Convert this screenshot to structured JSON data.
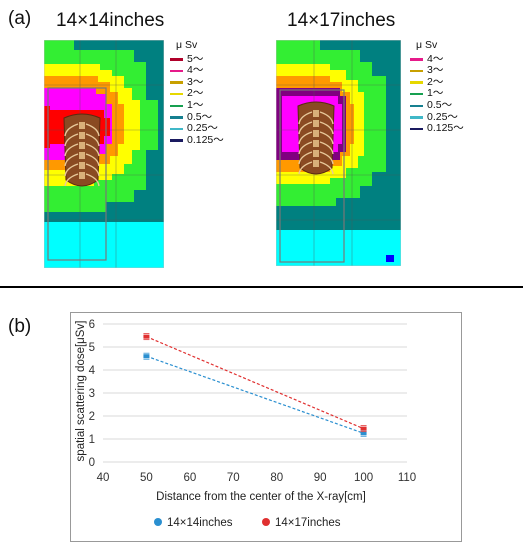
{
  "panel_a": {
    "label": "(a)",
    "maps": [
      {
        "title": "14×14inches",
        "legend_unit": "μ Sv",
        "legend": [
          {
            "label": "5～",
            "color": "#b0002a"
          },
          {
            "label": "4～",
            "color": "#e61a8a"
          },
          {
            "label": "3～",
            "color": "#c8a000"
          },
          {
            "label": "2～",
            "color": "#e6d800"
          },
          {
            "label": "1～",
            "color": "#16a050"
          },
          {
            "label": "0.5～",
            "color": "#168090"
          },
          {
            "label": "0.25～",
            "color": "#40b8c8"
          },
          {
            "label": "0.125～",
            "color": "#1a1a60"
          }
        ]
      },
      {
        "title": "14×17inches",
        "legend_unit": "μ Sv",
        "legend": [
          {
            "label": "4～",
            "color": "#e61a8a"
          },
          {
            "label": "3～",
            "color": "#c8a000"
          },
          {
            "label": "2～",
            "color": "#e6d800"
          },
          {
            "label": "1～",
            "color": "#16a050"
          },
          {
            "label": "0.5～",
            "color": "#168090"
          },
          {
            "label": "0.25～",
            "color": "#40b8c8"
          },
          {
            "label": "0.125～",
            "color": "#1a1a60"
          }
        ]
      }
    ],
    "zone_colors": {
      "red": "#ff0000",
      "magenta": "#ff00ff",
      "purple": "#800080",
      "orange": "#ff9900",
      "yellow": "#ffff00",
      "green": "#33ee33",
      "teal": "#008080",
      "cyan": "#00ffff",
      "blue": "#0000ff"
    }
  },
  "panel_b": {
    "label": "(b)",
    "chart_data": {
      "type": "scatter",
      "xlabel": "Distance from the center of the X-ray[cm]",
      "ylabel": "spatial scattering dose[μSv]",
      "xlim": [
        40,
        110
      ],
      "ylim": [
        0,
        6
      ],
      "xticks": [
        40,
        50,
        60,
        70,
        80,
        90,
        100,
        110
      ],
      "yticks": [
        0,
        1,
        2,
        3,
        4,
        5,
        6
      ],
      "grid": "horizontal",
      "legend_position": "bottom",
      "series": [
        {
          "name": "14×14inches",
          "color": "#2a8fd0",
          "x": [
            50,
            100
          ],
          "y": [
            4.6,
            1.25
          ],
          "trendline": "dashed"
        },
        {
          "name": "14×17inches",
          "color": "#e03030",
          "x": [
            50,
            100
          ],
          "y": [
            5.45,
            1.45
          ],
          "trendline": "dashed"
        }
      ]
    }
  }
}
